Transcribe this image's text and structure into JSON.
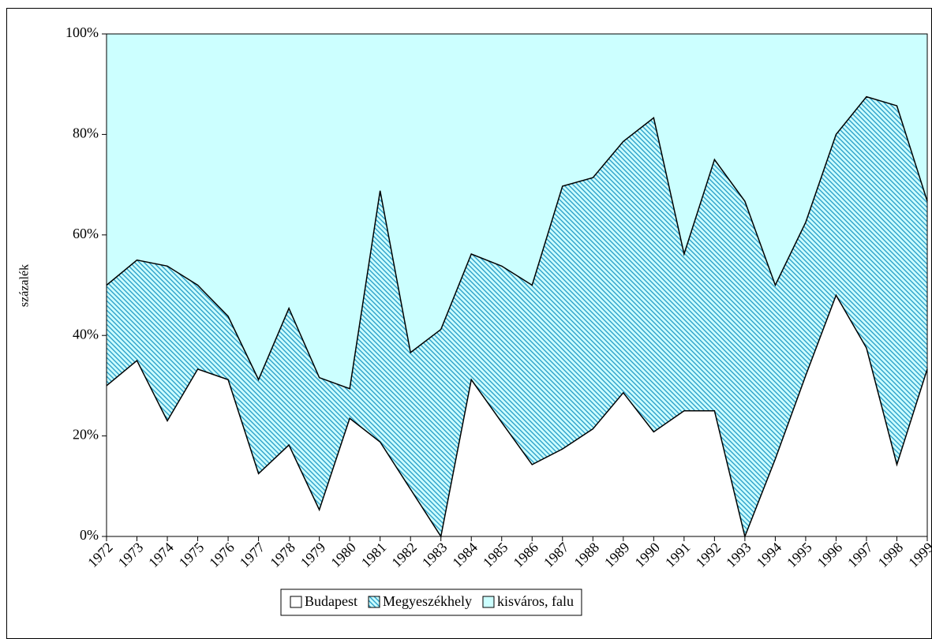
{
  "chart_data": {
    "type": "stacked_area",
    "y_label": "százalék",
    "categories": [
      "1972",
      "1973",
      "1974",
      "1975",
      "1976",
      "1977",
      "1978",
      "1979",
      "1980",
      "1981",
      "1982",
      "1983",
      "1984",
      "1985",
      "1986",
      "1987",
      "1988",
      "1989",
      "1990",
      "1991",
      "1992",
      "1993",
      "1994",
      "1995",
      "1996",
      "1997",
      "1998",
      "1999"
    ],
    "series": [
      {
        "name": "Budapest",
        "color": "#ffffff",
        "values": [
          30,
          35,
          23,
          33.3,
          31.2,
          12.5,
          18.2,
          5.3,
          23.5,
          18.8,
          9.4,
          0,
          31.2,
          22.7,
          14.3,
          17.4,
          21.4,
          28.6,
          20.8,
          25,
          25,
          0,
          15.4,
          32,
          48,
          37.5,
          14.3,
          33.3
        ]
      },
      {
        "name": "Megyeszékhely",
        "color": "#2e9fc9",
        "hatch": true,
        "values": [
          20,
          20,
          30.8,
          16.7,
          12.6,
          18.7,
          27.2,
          26.3,
          5.9,
          50,
          27.2,
          41.2,
          25,
          31.1,
          35.7,
          52.3,
          50,
          50,
          62.5,
          31.2,
          50,
          66.7,
          34.6,
          30.5,
          32,
          50,
          71.4,
          33.4
        ]
      },
      {
        "name": "kisváros, falu",
        "color": "#ccffff",
        "values": [
          50,
          45,
          46.2,
          50,
          56.2,
          68.8,
          54.6,
          68.4,
          70.6,
          31.2,
          63.4,
          58.8,
          43.8,
          46.2,
          50,
          30.3,
          28.6,
          21.4,
          16.7,
          43.8,
          25,
          33.3,
          50,
          37.5,
          20,
          12.5,
          14.3,
          33.3
        ]
      }
    ],
    "ylim": [
      0,
      100
    ],
    "yticks": [
      {
        "value": 0,
        "label": "0%"
      },
      {
        "value": 20,
        "label": "20%"
      },
      {
        "value": 40,
        "label": "40%"
      },
      {
        "value": 60,
        "label": "60%"
      },
      {
        "value": 80,
        "label": "80%"
      },
      {
        "value": 100,
        "label": "100%"
      }
    ]
  }
}
